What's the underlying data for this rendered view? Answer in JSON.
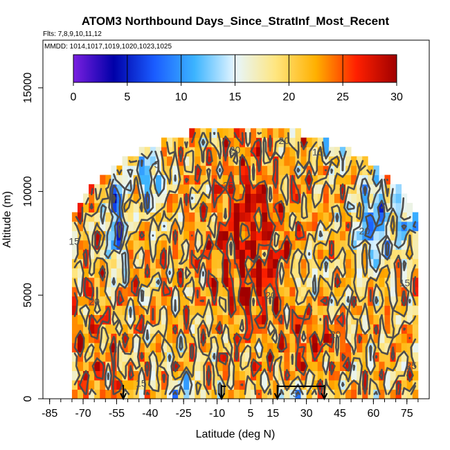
{
  "chart_data": {
    "type": "heatmap",
    "title": "ATOM3 Northbound Days_Since_StratInf_Most_Recent",
    "subtitle_flights": "Flts: 7,8,9,10,11,12",
    "subtitle_dates": "MMDD: 1014,1017,1019,1020,1023,1025",
    "xlabel": "Latitude (deg N)",
    "ylabel": "Altitude (m)",
    "xlim": [
      -88,
      85
    ],
    "ylim": [
      0,
      17300
    ],
    "x_ticks": [
      -85,
      -70,
      -55,
      -40,
      -25,
      -10,
      5,
      15,
      30,
      45,
      60,
      75
    ],
    "x_tick_labels": [
      "-85",
      "-70",
      "-55",
      "-40",
      "-25",
      "-10",
      "5",
      "15",
      "30",
      "45",
      "60",
      "75"
    ],
    "y_ticks": [
      0,
      5000,
      10000,
      15000
    ],
    "y_tick_labels": [
      "0",
      "5000",
      "10000",
      "15000"
    ],
    "colorbar": {
      "range": [
        0,
        30
      ],
      "ticks": [
        0,
        5,
        10,
        15,
        20,
        25,
        30
      ],
      "tick_labels": [
        "0",
        "5",
        "10",
        "15",
        "20",
        "25",
        "30"
      ],
      "colors": [
        "#7a1fe0",
        "#0000a8",
        "#1a5cff",
        "#3cb4ff",
        "#e6f6ff",
        "#ffe680",
        "#ffb000",
        "#ff2000",
        "#a00000"
      ]
    },
    "lat_extent": [
      -75,
      80
    ],
    "alt_extent": [
      0,
      13000
    ],
    "profile_latitudes": [
      -52,
      -8,
      17,
      38
    ],
    "contour_labels": [
      {
        "text": "20",
        "lat": 20,
        "alt": 12450
      },
      {
        "text": "20",
        "lat": -2,
        "alt": 12000
      },
      {
        "text": "15",
        "lat": 35,
        "alt": 11900
      },
      {
        "text": "5",
        "lat": -37,
        "alt": 11300
      },
      {
        "text": "25",
        "lat": -5,
        "alt": 10300
      },
      {
        "text": "20",
        "lat": 56,
        "alt": 8100
      },
      {
        "text": "15",
        "lat": -74,
        "alt": 7600
      },
      {
        "text": "15",
        "lat": 74,
        "alt": 5600
      },
      {
        "text": "20",
        "lat": 14,
        "alt": 5000
      },
      {
        "text": "20",
        "lat": -65,
        "alt": 4700
      },
      {
        "text": "20",
        "lat": 43,
        "alt": 3100
      },
      {
        "text": "25",
        "lat": 77,
        "alt": 1600
      },
      {
        "text": "15",
        "lat": -44,
        "alt": 750
      },
      {
        "text": "5",
        "lat": 25,
        "alt": 250
      }
    ]
  }
}
